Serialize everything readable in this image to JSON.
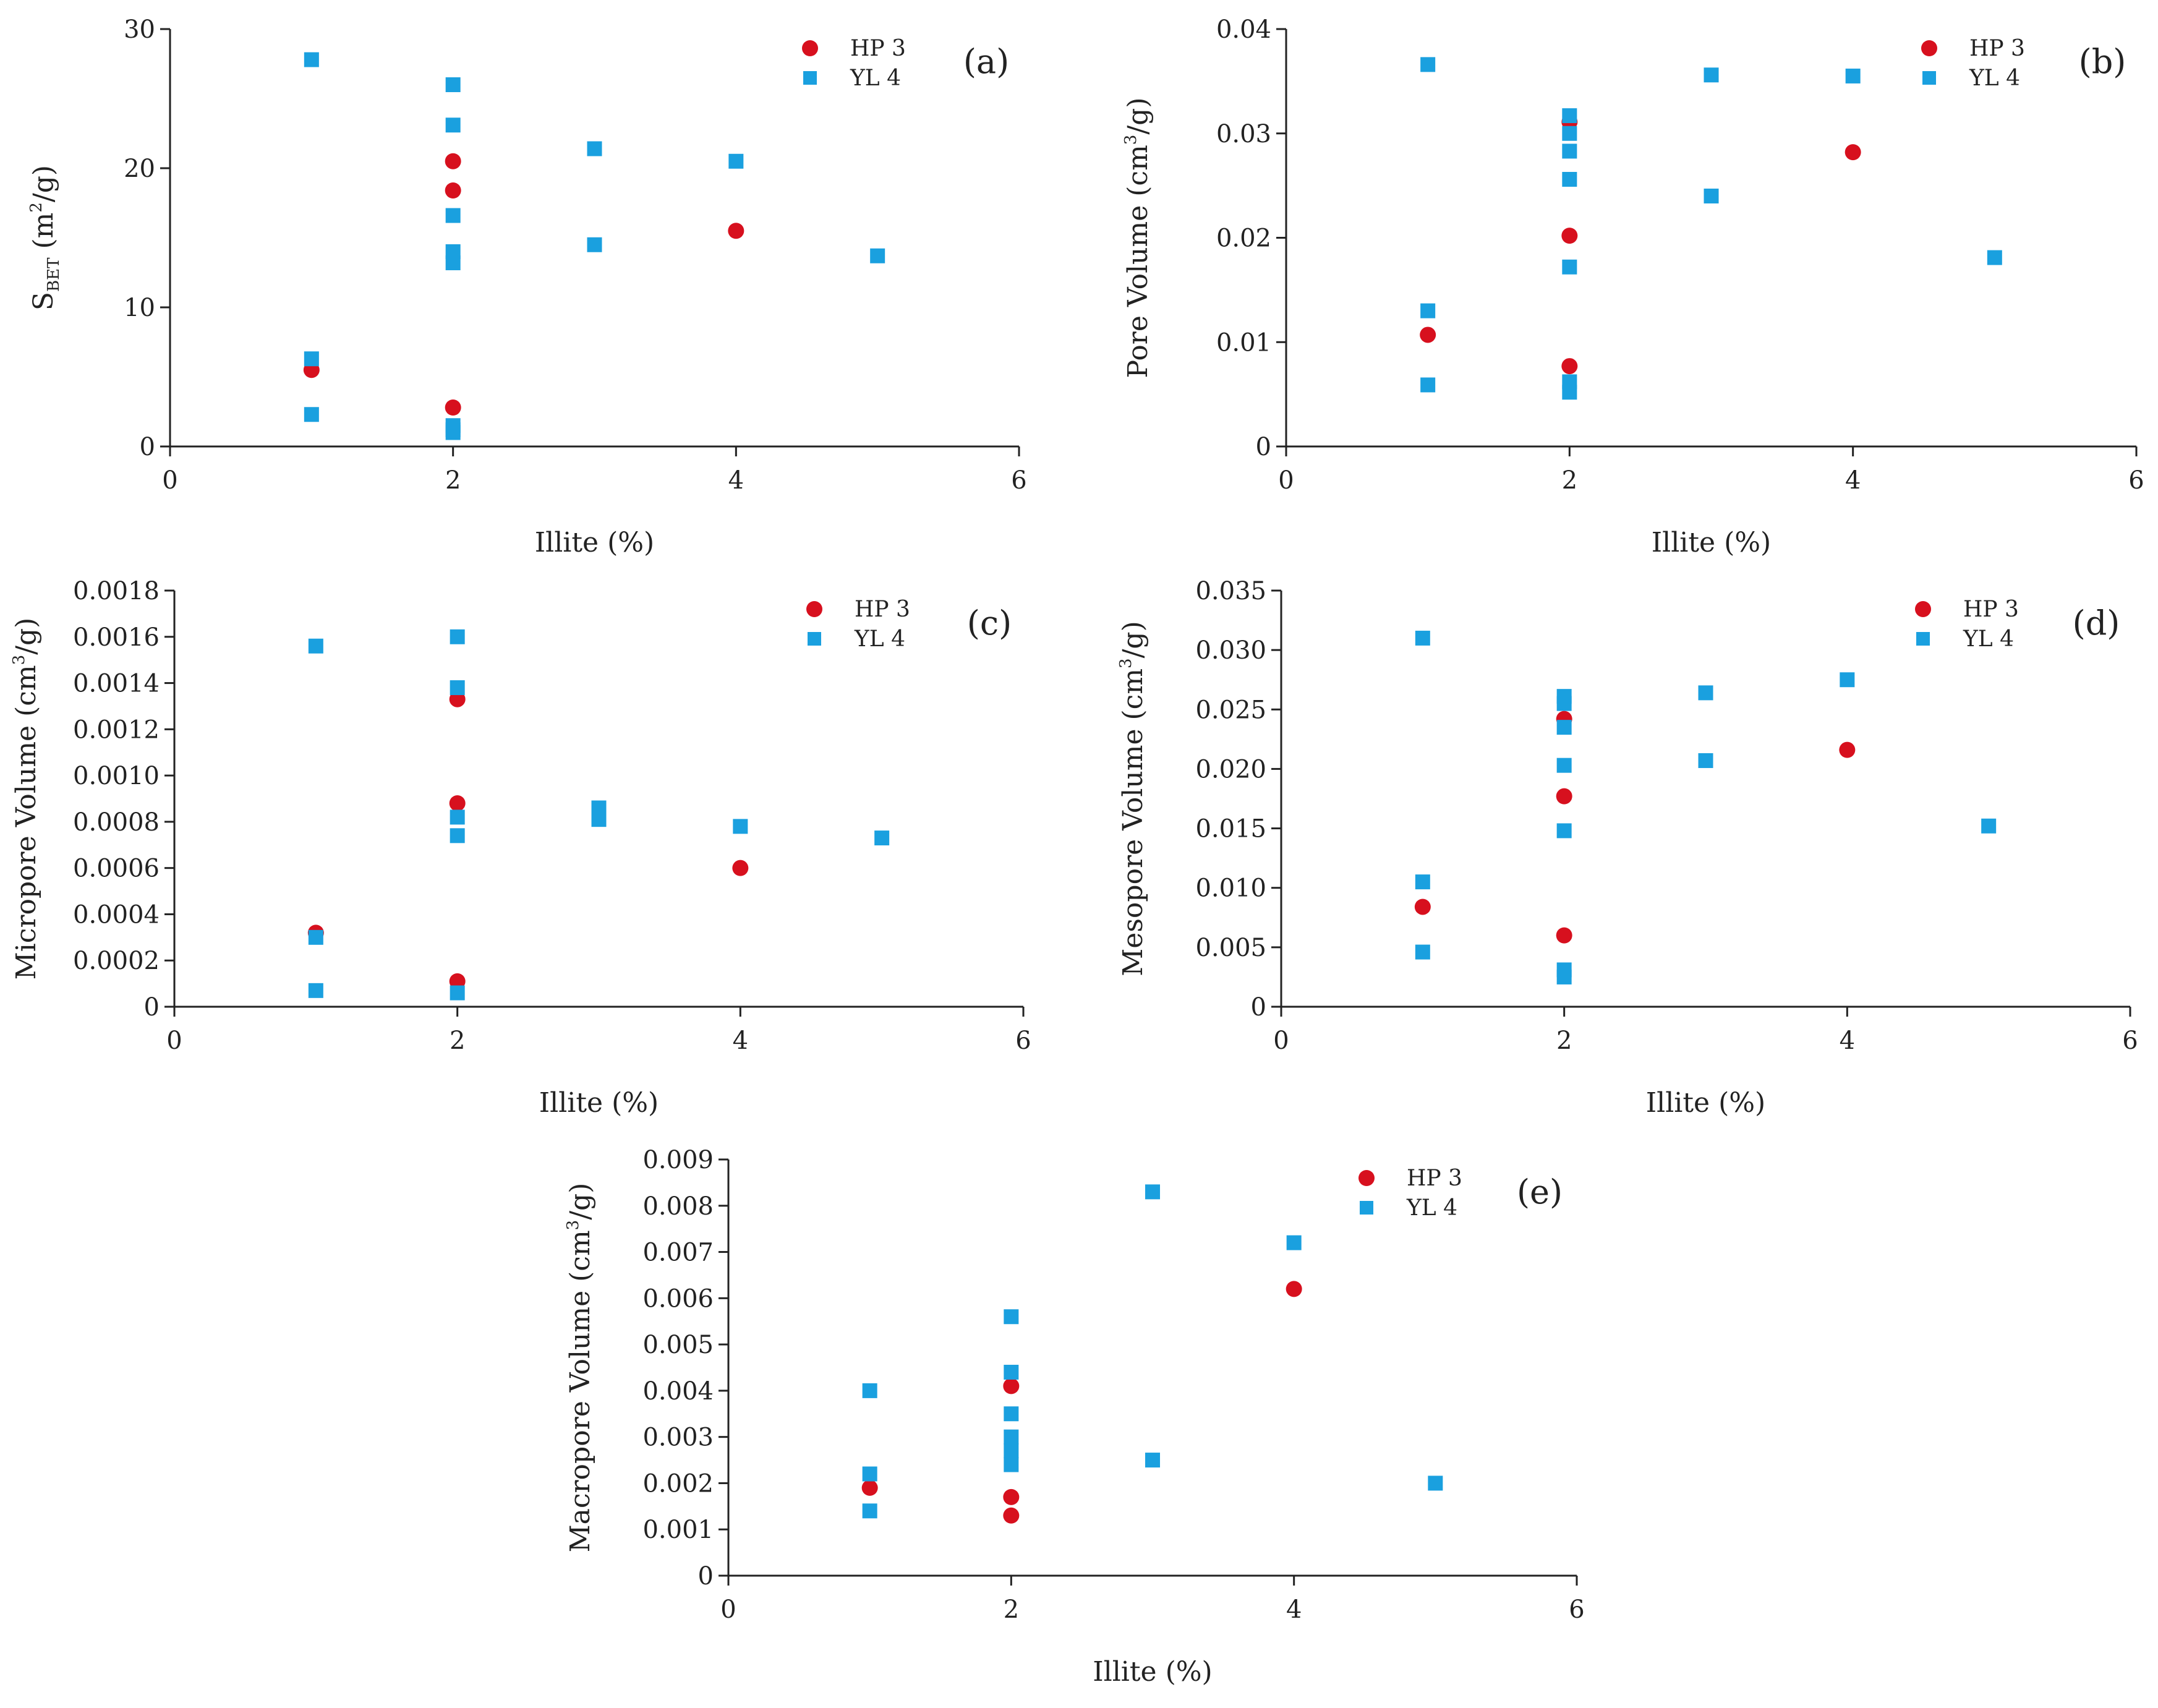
{
  "colors": {
    "HP3": "#d7101e",
    "YL4": "#1aa0df"
  },
  "chart_data": [
    {
      "type": "scatter",
      "panel_label": "(a)",
      "xlabel": "Illite (%)",
      "ylabel": "S",
      "ylabel_sub": "BET",
      "ylabel_rest": " (m",
      "ylabel_sup": "2",
      "ylabel_tail": "/g)",
      "xlim": [
        0,
        6
      ],
      "ylim": [
        0,
        30
      ],
      "xticks": [
        "0",
        "2",
        "4",
        "6"
      ],
      "yticks": [
        "0",
        "10",
        "20",
        "30"
      ],
      "xtick_values": [
        0,
        2,
        4,
        6
      ],
      "ytick_values": [
        0,
        10,
        20,
        30
      ],
      "series": [
        {
          "name": "HP 3",
          "marker": "circle",
          "x": [
            1,
            2,
            2,
            2,
            4
          ],
          "y": [
            5.5,
            20.5,
            18.4,
            2.8,
            15.5
          ]
        },
        {
          "name": "YL 4",
          "marker": "square",
          "x": [
            1,
            1,
            1,
            2,
            2,
            2,
            2,
            2,
            2,
            2,
            2,
            3,
            3,
            4,
            5
          ],
          "y": [
            27.8,
            6.3,
            2.3,
            26.0,
            23.1,
            16.6,
            14.0,
            13.2,
            1.5,
            1.0,
            1.2,
            21.4,
            14.5,
            20.5,
            13.7
          ]
        }
      ]
    },
    {
      "type": "scatter",
      "panel_label": "(b)",
      "xlabel": "Illite (%)",
      "ylabel": "Pore Volume (cm",
      "ylabel_sup": "3",
      "ylabel_tail": "/g)",
      "xlim": [
        0,
        6
      ],
      "ylim": [
        0,
        0.04
      ],
      "xticks": [
        "0",
        "2",
        "4",
        "6"
      ],
      "yticks": [
        "0",
        "0.01",
        "0.02",
        "0.03",
        "0.04"
      ],
      "xtick_values": [
        0,
        2,
        4,
        6
      ],
      "ytick_values": [
        0,
        0.01,
        0.02,
        0.03,
        0.04
      ],
      "series": [
        {
          "name": "HP 3",
          "marker": "circle",
          "x": [
            1,
            2,
            2,
            2,
            4
          ],
          "y": [
            0.0107,
            0.0311,
            0.0202,
            0.0077,
            0.0282
          ]
        },
        {
          "name": "YL 4",
          "marker": "square",
          "x": [
            1,
            1,
            1,
            2,
            2,
            2,
            2,
            2,
            2,
            2,
            3,
            3,
            4,
            5
          ],
          "y": [
            0.0366,
            0.013,
            0.0059,
            0.0317,
            0.03,
            0.0283,
            0.0256,
            0.0172,
            0.0062,
            0.0052,
            0.0356,
            0.024,
            0.0355,
            0.0181
          ]
        }
      ]
    },
    {
      "type": "scatter",
      "panel_label": "(c)",
      "xlabel": "Illite (%)",
      "ylabel": "Micropore Volume (cm",
      "ylabel_sup": "3",
      "ylabel_tail": "/g)",
      "xlim": [
        0,
        6
      ],
      "ylim": [
        0,
        0.0018
      ],
      "xticks": [
        "0",
        "2",
        "4",
        "6"
      ],
      "yticks": [
        "0",
        "0.0002",
        "0.0004",
        "0.0006",
        "0.0008",
        "0.0010",
        "0.0012",
        "0.0014",
        "0.0016",
        "0.0018"
      ],
      "xtick_values": [
        0,
        2,
        4,
        6
      ],
      "ytick_values": [
        0,
        0.0002,
        0.0004,
        0.0006,
        0.0008,
        0.001,
        0.0012,
        0.0014,
        0.0016,
        0.0018
      ],
      "series": [
        {
          "name": "HP 3",
          "marker": "circle",
          "x": [
            1,
            2,
            2,
            2,
            4
          ],
          "y": [
            0.00032,
            0.00133,
            0.00088,
            0.00011,
            0.0006
          ]
        },
        {
          "name": "YL 4",
          "marker": "square",
          "x": [
            1,
            1,
            1,
            2,
            2,
            2,
            2,
            2,
            3,
            3,
            4,
            5
          ],
          "y": [
            0.00156,
            0.0003,
            7e-05,
            0.0016,
            0.00138,
            0.00082,
            0.00074,
            6e-05,
            0.00086,
            0.00081,
            0.00078,
            0.00073
          ]
        }
      ]
    },
    {
      "type": "scatter",
      "panel_label": "(d)",
      "xlabel": "Illite (%)",
      "ylabel": "Mesopore Volume (cm",
      "ylabel_sup": "3",
      "ylabel_tail": "/g)",
      "xlim": [
        0,
        6
      ],
      "ylim": [
        0,
        0.035
      ],
      "xticks": [
        "0",
        "2",
        "4",
        "6"
      ],
      "yticks": [
        "0",
        "0.005",
        "0.010",
        "0.015",
        "0.020",
        "0.025",
        "0.030",
        "0.035"
      ],
      "xtick_values": [
        0,
        2,
        4,
        6
      ],
      "ytick_values": [
        0,
        0.005,
        0.01,
        0.015,
        0.02,
        0.025,
        0.03,
        0.035
      ],
      "series": [
        {
          "name": "HP 3",
          "marker": "circle",
          "x": [
            1,
            2,
            2,
            2,
            4
          ],
          "y": [
            0.0084,
            0.0242,
            0.0177,
            0.006,
            0.0216
          ]
        },
        {
          "name": "YL 4",
          "marker": "square",
          "x": [
            1,
            1,
            1,
            2,
            2,
            2,
            2,
            2,
            2,
            2,
            3,
            3,
            4,
            5
          ],
          "y": [
            0.031,
            0.0105,
            0.0046,
            0.0261,
            0.0255,
            0.0235,
            0.0203,
            0.0148,
            0.0031,
            0.0025,
            0.0264,
            0.0207,
            0.0275,
            0.0152
          ]
        }
      ]
    },
    {
      "type": "scatter",
      "panel_label": "(e)",
      "xlabel": "Illite (%)",
      "ylabel": "Macropore Volume (cm",
      "ylabel_sup": "3",
      "ylabel_tail": "/g)",
      "xlim": [
        0,
        6
      ],
      "ylim": [
        0,
        0.009
      ],
      "xticks": [
        "0",
        "2",
        "4",
        "6"
      ],
      "yticks": [
        "0",
        "0.001",
        "0.002",
        "0.003",
        "0.004",
        "0.005",
        "0.006",
        "0.007",
        "0.008",
        "0.009"
      ],
      "xtick_values": [
        0,
        2,
        4,
        6
      ],
      "ytick_values": [
        0,
        0.001,
        0.002,
        0.003,
        0.004,
        0.005,
        0.006,
        0.007,
        0.008,
        0.009
      ],
      "series": [
        {
          "name": "HP 3",
          "marker": "circle",
          "x": [
            1,
            2,
            2,
            2,
            4
          ],
          "y": [
            0.0019,
            0.0041,
            0.0017,
            0.0013,
            0.0062
          ]
        },
        {
          "name": "YL 4",
          "marker": "square",
          "x": [
            1,
            1,
            1,
            2,
            2,
            2,
            2,
            2,
            2,
            3,
            3,
            4,
            5
          ],
          "y": [
            0.004,
            0.0022,
            0.0014,
            0.0056,
            0.0044,
            0.0035,
            0.003,
            0.0027,
            0.0024,
            0.0083,
            0.0025,
            0.0072,
            0.002
          ]
        }
      ]
    }
  ]
}
